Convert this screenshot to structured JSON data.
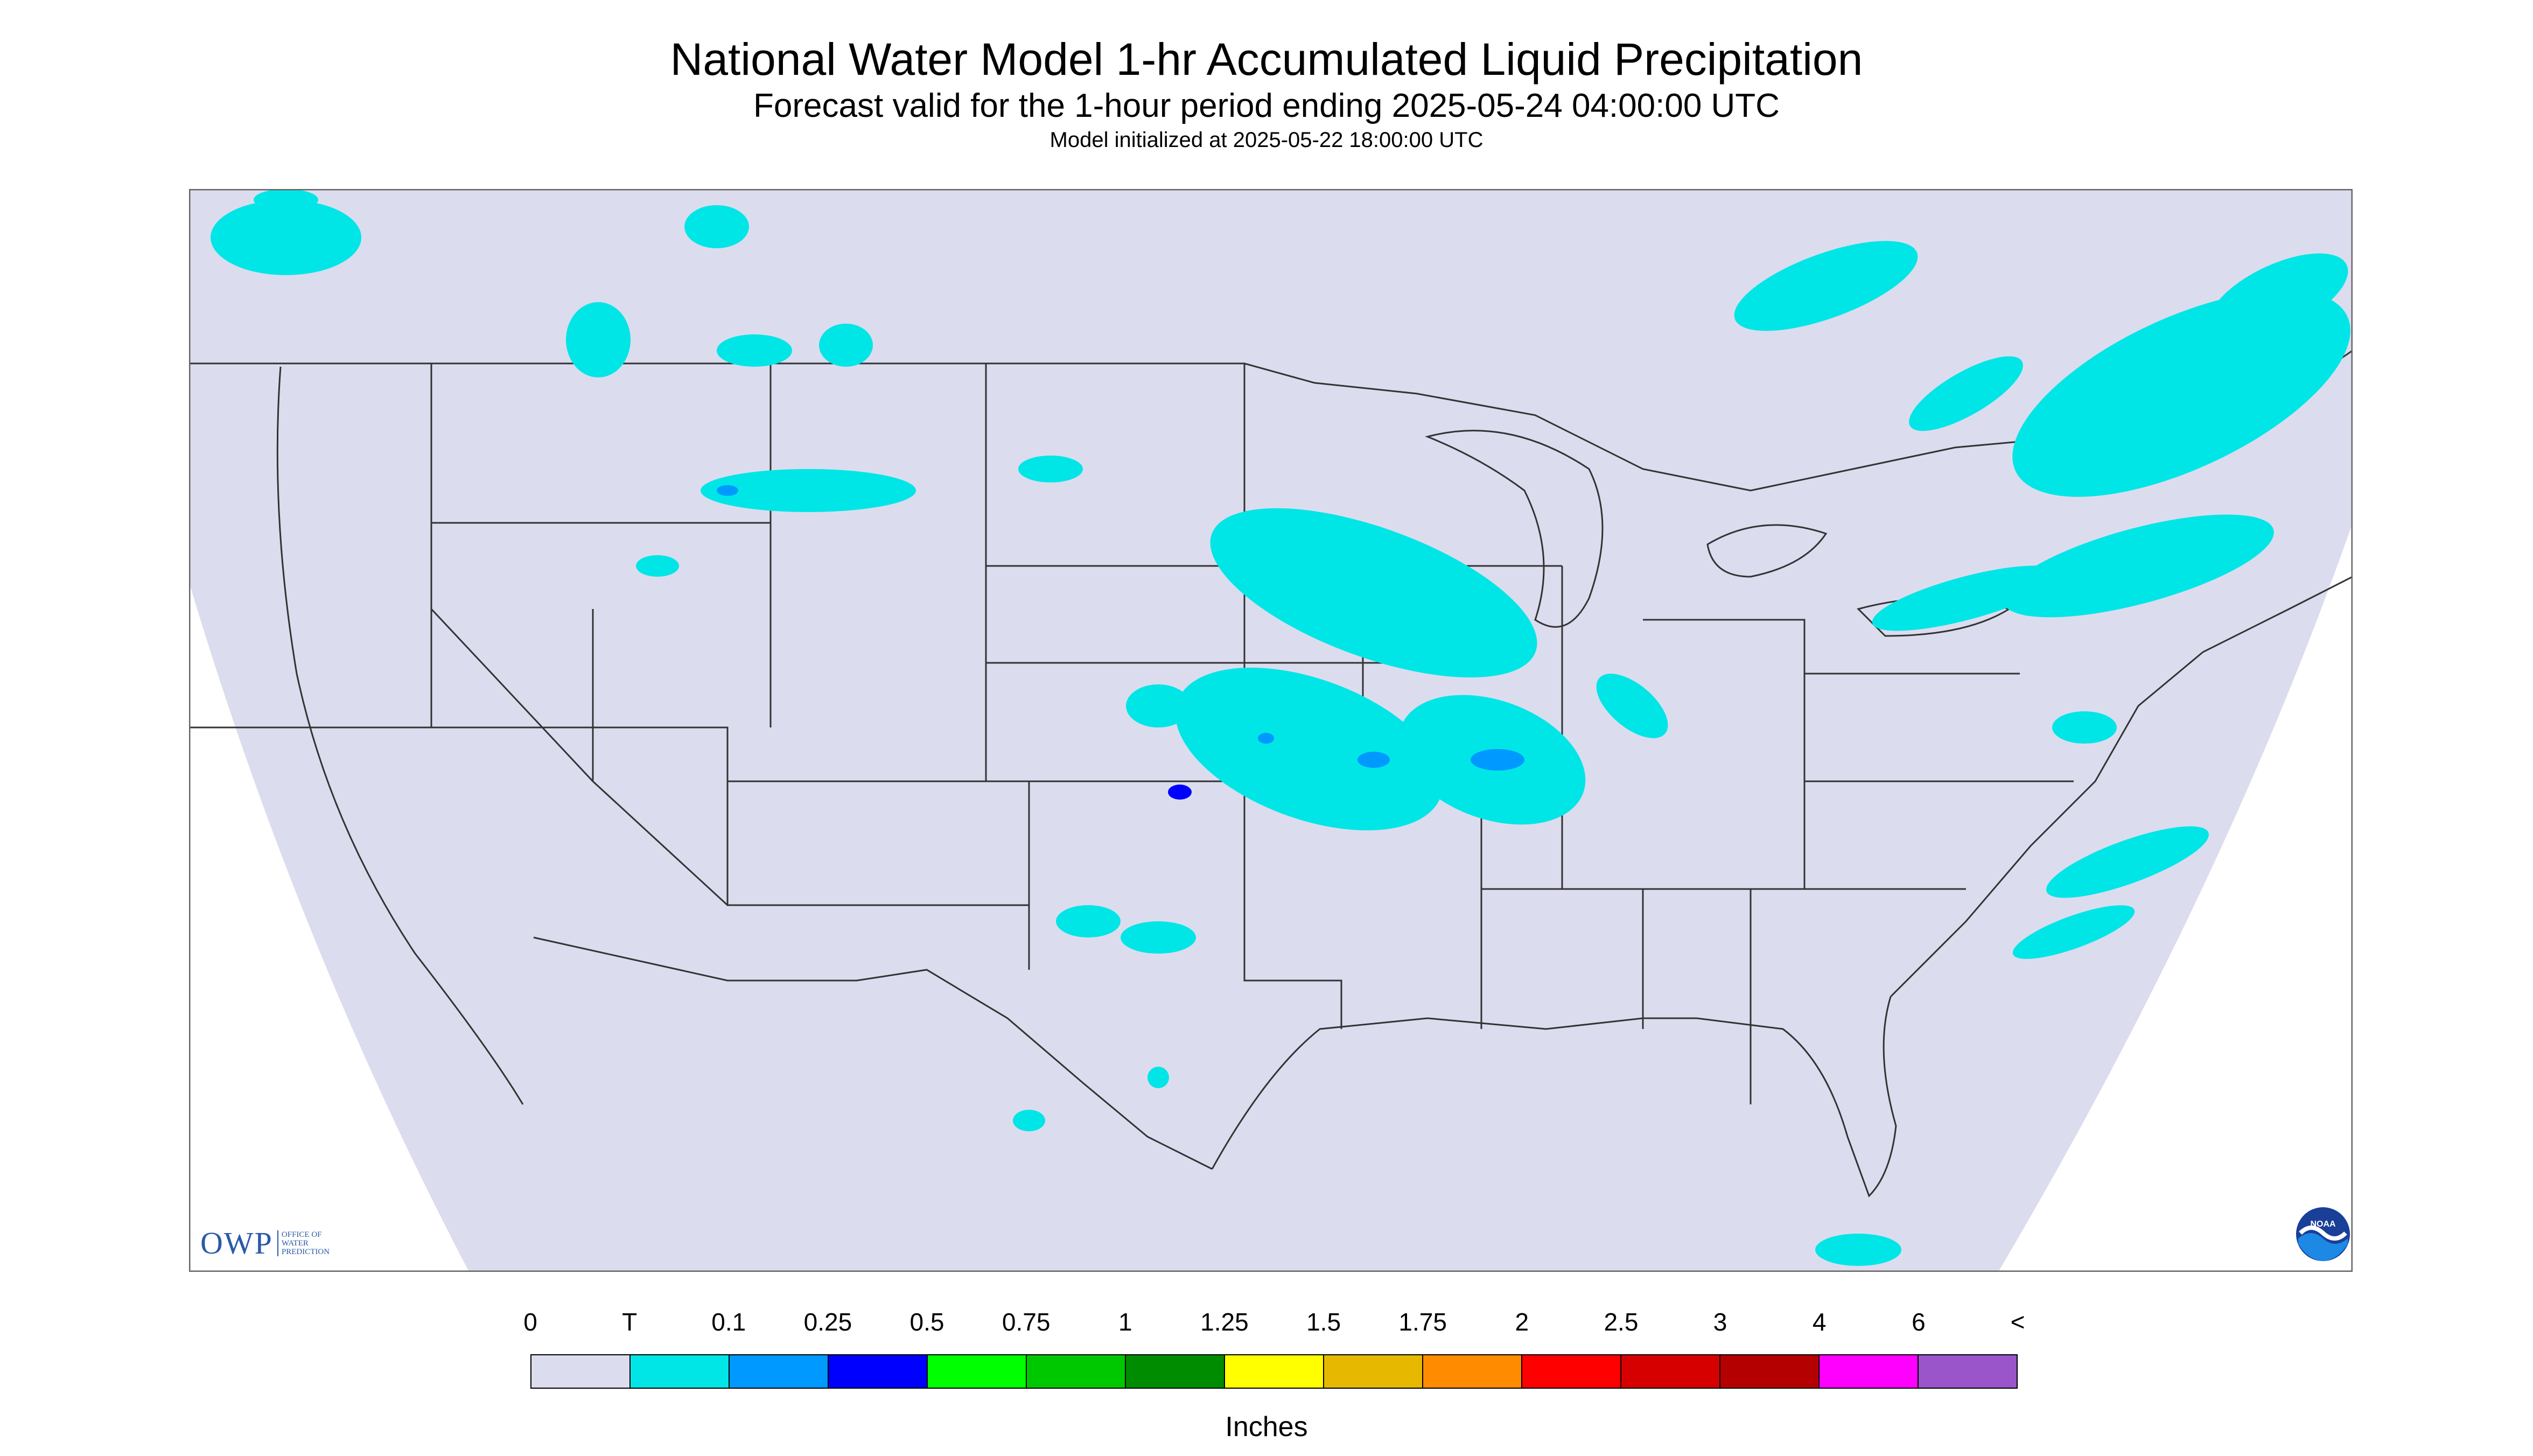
{
  "title": "National Water Model 1-hr Accumulated Liquid Precipitation",
  "subtitle": "Forecast valid for the 1-hour period ending 2025-05-24 04:00:00 UTC",
  "init": "Model initialized at 2025-05-22 18:00:00 UTC",
  "legend": {
    "labels": [
      "0",
      "T",
      "0.1",
      "0.25",
      "0.5",
      "0.75",
      "1",
      "1.25",
      "1.5",
      "1.75",
      "2",
      "2.5",
      "3",
      "4",
      "6",
      "<"
    ],
    "colors": [
      "#dcdcef",
      "#00e6e6",
      "#0099ff",
      "#0000ff",
      "#00ff00",
      "#00c800",
      "#008c00",
      "#ffff00",
      "#e6b800",
      "#ff8c00",
      "#ff0000",
      "#d70000",
      "#b40000",
      "#ff00ff",
      "#9955c9"
    ],
    "units": "Inches"
  },
  "logos": {
    "owp": "OWP",
    "owp_sub": [
      "OFFICE OF",
      "WATER",
      "PREDICTION"
    ],
    "noaa": "NOAA"
  },
  "map": {
    "background_color": "#dcdcef",
    "precip_color_light": "#00e6e6",
    "precip_color_mid": "#0099ff",
    "precip_color_heavy": "#0000ff",
    "outside_domain_color": "#ffffff",
    "boundary_color": "#333333"
  }
}
